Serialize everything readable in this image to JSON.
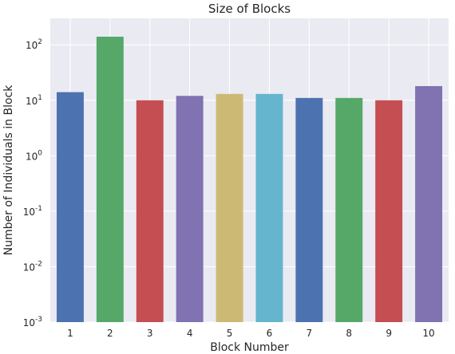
{
  "chart_data": {
    "type": "bar",
    "title": "Size of Blocks",
    "xlabel": "Block Number",
    "ylabel": "Number of Individuals in Block",
    "yscale": "log",
    "ylim": [
      0.001,
      300
    ],
    "grid": true,
    "background": "#EAEAF2",
    "categories": [
      "1",
      "2",
      "3",
      "4",
      "5",
      "6",
      "7",
      "8",
      "9",
      "10"
    ],
    "values": [
      14,
      140,
      10,
      12,
      13,
      13,
      11,
      11,
      10,
      18
    ],
    "colors": [
      "#4C72B0",
      "#55A868",
      "#C44E52",
      "#8172B2",
      "#CCB974",
      "#64B5CD",
      "#4C72B0",
      "#55A868",
      "#C44E52",
      "#8172B2"
    ],
    "yticks": [
      {
        "exp": -3,
        "label": "-3"
      },
      {
        "exp": -2,
        "label": "-2"
      },
      {
        "exp": -1,
        "label": "-1"
      },
      {
        "exp": 0,
        "label": "0"
      },
      {
        "exp": 1,
        "label": "1"
      },
      {
        "exp": 2,
        "label": "2"
      }
    ]
  }
}
